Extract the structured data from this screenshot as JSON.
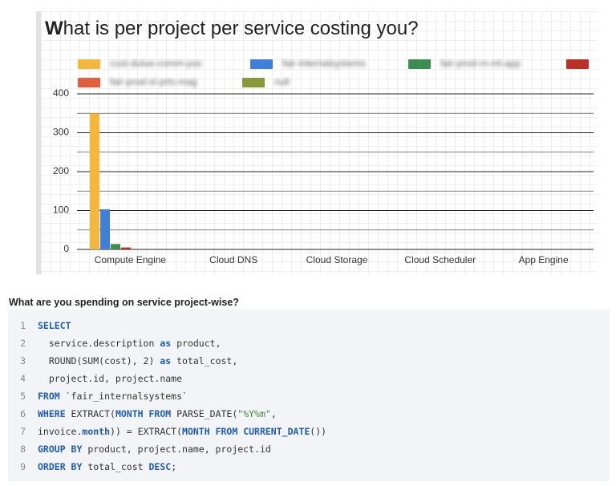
{
  "chart_data": {
    "type": "bar",
    "title": "What is per project per service costing you?",
    "categories": [
      "Compute Engine",
      "Cloud DNS",
      "Cloud Storage",
      "Cloud Scheduler",
      "App Engine"
    ],
    "series": [
      {
        "name": "cust-dulue-comm-poc",
        "color": "#f4b73e",
        "values": [
          350,
          0,
          0,
          0,
          0
        ]
      },
      {
        "name": "fair-internalsystems",
        "color": "#3f7fd9",
        "values": [
          103,
          0,
          0,
          0,
          0
        ]
      },
      {
        "name": "fair-prod-rn-ml-app",
        "color": "#3c8d4f",
        "values": [
          14,
          0,
          0,
          0,
          0
        ]
      },
      {
        "name": null,
        "color": "#b83028",
        "values": [
          5,
          0,
          0,
          0,
          0
        ]
      },
      {
        "name": "fair-prod-sl-prts-mag",
        "color": "#e0603c",
        "values": [
          0,
          0,
          0,
          0,
          0
        ]
      },
      {
        "name": "null",
        "color": "#8a9a3b",
        "values": [
          0,
          0,
          0,
          0,
          0
        ]
      }
    ],
    "ylim": [
      0,
      400
    ],
    "yticks": [
      0,
      100,
      200,
      300,
      400
    ],
    "y_minor_ticks": [
      50,
      150,
      250,
      350
    ],
    "grid": true
  },
  "code_section": {
    "heading": "What are you spending on service project-wise?",
    "lines": [
      {
        "number": 1,
        "tokens": [
          {
            "text": "SELECT",
            "kind": "keyword"
          }
        ]
      },
      {
        "number": 2,
        "tokens": [
          {
            "text": "  service.description ",
            "kind": "plain"
          },
          {
            "text": "as",
            "kind": "keyword"
          },
          {
            "text": " product,",
            "kind": "plain"
          }
        ]
      },
      {
        "number": 3,
        "tokens": [
          {
            "text": "  ROUND(SUM(cost), 2) ",
            "kind": "plain"
          },
          {
            "text": "as",
            "kind": "keyword"
          },
          {
            "text": " total_cost,",
            "kind": "plain"
          }
        ]
      },
      {
        "number": 4,
        "tokens": [
          {
            "text": "  project.id, project.name",
            "kind": "plain"
          }
        ]
      },
      {
        "number": 5,
        "tokens": [
          {
            "text": "FROM",
            "kind": "keyword"
          },
          {
            "text": " `fair_internalsystems`",
            "kind": "plain"
          }
        ]
      },
      {
        "number": 6,
        "tokens": [
          {
            "text": "WHERE",
            "kind": "keyword"
          },
          {
            "text": " EXTRACT(",
            "kind": "plain"
          },
          {
            "text": "MONTH FROM",
            "kind": "keyword"
          },
          {
            "text": " PARSE_DATE(",
            "kind": "plain"
          },
          {
            "text": "\"%Y%m\"",
            "kind": "string"
          },
          {
            "text": ",",
            "kind": "plain"
          }
        ]
      },
      {
        "number": 7,
        "tokens": [
          {
            "text": "invoice.",
            "kind": "plain"
          },
          {
            "text": "month",
            "kind": "keyword"
          },
          {
            "text": ")) = EXTRACT(",
            "kind": "plain"
          },
          {
            "text": "MONTH FROM CURRENT_DATE",
            "kind": "keyword"
          },
          {
            "text": "())",
            "kind": "plain"
          }
        ]
      },
      {
        "number": 8,
        "tokens": [
          {
            "text": "GROUP BY",
            "kind": "keyword"
          },
          {
            "text": " product, project.name, project.id",
            "kind": "plain"
          }
        ]
      },
      {
        "number": 9,
        "tokens": [
          {
            "text": "ORDER BY",
            "kind": "keyword"
          },
          {
            "text": " total_cost ",
            "kind": "plain"
          },
          {
            "text": "DESC",
            "kind": "keyword"
          },
          {
            "text": ";",
            "kind": "plain"
          }
        ]
      }
    ]
  }
}
